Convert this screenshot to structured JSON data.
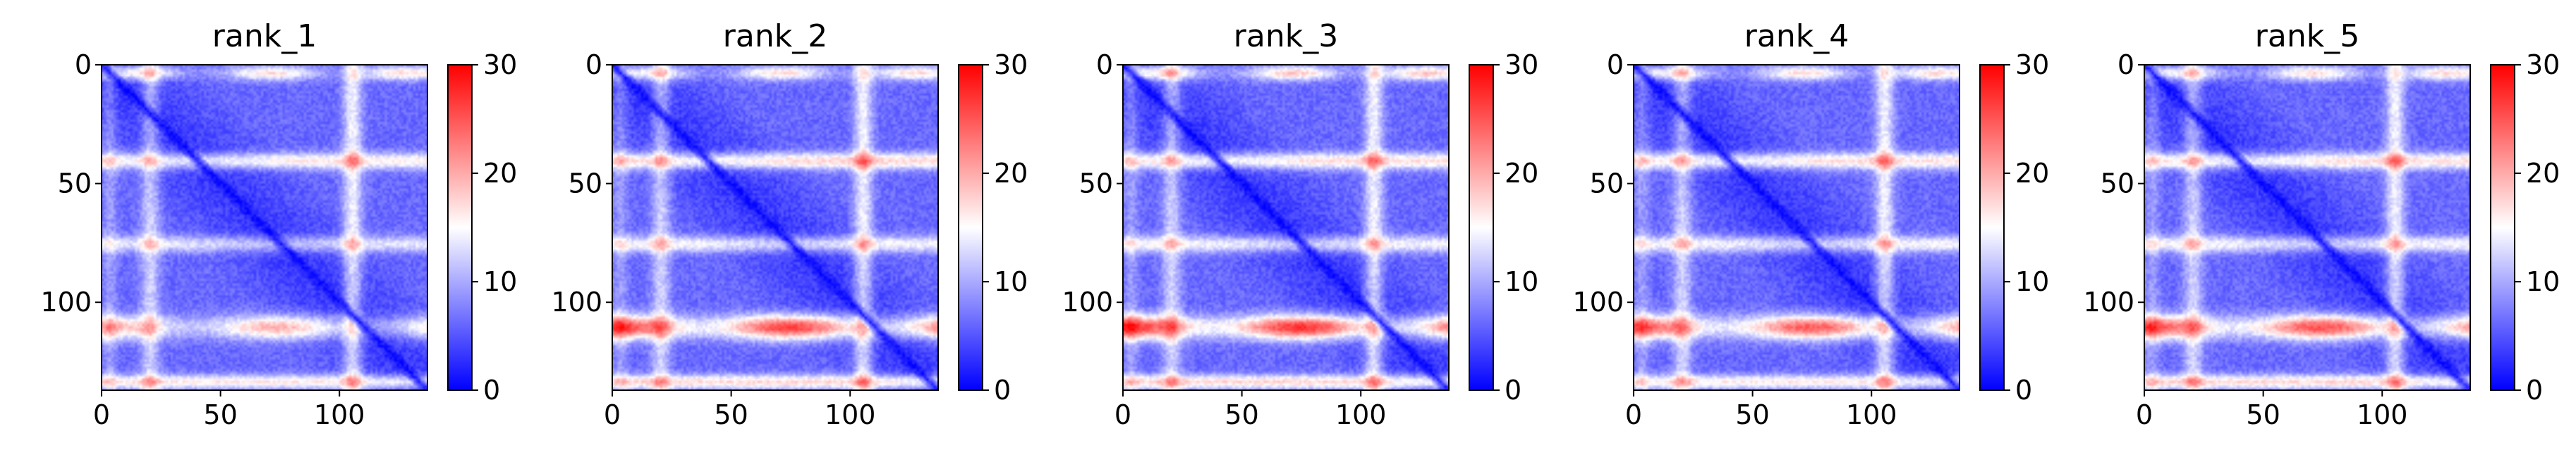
{
  "chart_data": [
    {
      "type": "heatmap",
      "title": "rank_1",
      "x_ticks": [
        0,
        50,
        100
      ],
      "y_ticks": [
        0,
        50,
        100
      ],
      "xlim": [
        0,
        137
      ],
      "ylim": [
        137,
        0
      ],
      "colorbar": {
        "ticks": [
          0,
          10,
          20,
          30
        ],
        "range": [
          0,
          30
        ],
        "colormap": [
          "#0000ff",
          "#ffffff",
          "#ff0000"
        ]
      },
      "features": {
        "diagonal": 0,
        "bands_y": [
          3,
          40,
          75,
          110,
          133
        ],
        "bands_x": [
          20,
          105
        ],
        "band_levels": [
          20,
          14,
          12,
          16,
          18
        ]
      }
    },
    {
      "type": "heatmap",
      "title": "rank_2",
      "x_ticks": [
        0,
        50,
        100
      ],
      "y_ticks": [
        0,
        50,
        100
      ],
      "xlim": [
        0,
        137
      ],
      "ylim": [
        137,
        0
      ],
      "colorbar": {
        "ticks": [
          0,
          10,
          20,
          30
        ],
        "range": [
          0,
          30
        ],
        "colormap": [
          "#0000ff",
          "#ffffff",
          "#ff0000"
        ]
      },
      "features": {
        "diagonal": 0,
        "bands_y": [
          3,
          40,
          75,
          110,
          133
        ],
        "bands_x": [
          20,
          105
        ],
        "band_levels": [
          20,
          16,
          14,
          24,
          20
        ]
      }
    },
    {
      "type": "heatmap",
      "title": "rank_3",
      "x_ticks": [
        0,
        50,
        100
      ],
      "y_ticks": [
        0,
        50,
        100
      ],
      "xlim": [
        0,
        137
      ],
      "ylim": [
        137,
        0
      ],
      "colorbar": {
        "ticks": [
          0,
          10,
          20,
          30
        ],
        "range": [
          0,
          30
        ],
        "colormap": [
          "#0000ff",
          "#ffffff",
          "#ff0000"
        ]
      },
      "features": {
        "diagonal": 0,
        "bands_y": [
          3,
          40,
          75,
          110,
          133
        ],
        "bands_x": [
          20,
          105
        ],
        "band_levels": [
          22,
          15,
          14,
          25,
          20
        ]
      }
    },
    {
      "type": "heatmap",
      "title": "rank_4",
      "x_ticks": [
        0,
        50,
        100
      ],
      "y_ticks": [
        0,
        50,
        100
      ],
      "xlim": [
        0,
        137
      ],
      "ylim": [
        137,
        0
      ],
      "colorbar": {
        "ticks": [
          0,
          10,
          20,
          30
        ],
        "range": [
          0,
          30
        ],
        "colormap": [
          "#0000ff",
          "#ffffff",
          "#ff0000"
        ]
      },
      "features": {
        "diagonal": 0,
        "bands_y": [
          3,
          40,
          75,
          110,
          133
        ],
        "bands_x": [
          20,
          105
        ],
        "band_levels": [
          20,
          15,
          14,
          22,
          18
        ]
      }
    },
    {
      "type": "heatmap",
      "title": "rank_5",
      "x_ticks": [
        0,
        50,
        100
      ],
      "y_ticks": [
        0,
        50,
        100
      ],
      "xlim": [
        0,
        137
      ],
      "ylim": [
        137,
        0
      ],
      "colorbar": {
        "ticks": [
          0,
          10,
          20,
          30
        ],
        "range": [
          0,
          30
        ],
        "colormap": [
          "#0000ff",
          "#ffffff",
          "#ff0000"
        ]
      },
      "features": {
        "diagonal": 0,
        "bands_y": [
          3,
          40,
          75,
          110,
          133
        ],
        "bands_x": [
          20,
          105
        ],
        "band_levels": [
          20,
          15,
          14,
          23,
          20
        ]
      }
    }
  ]
}
